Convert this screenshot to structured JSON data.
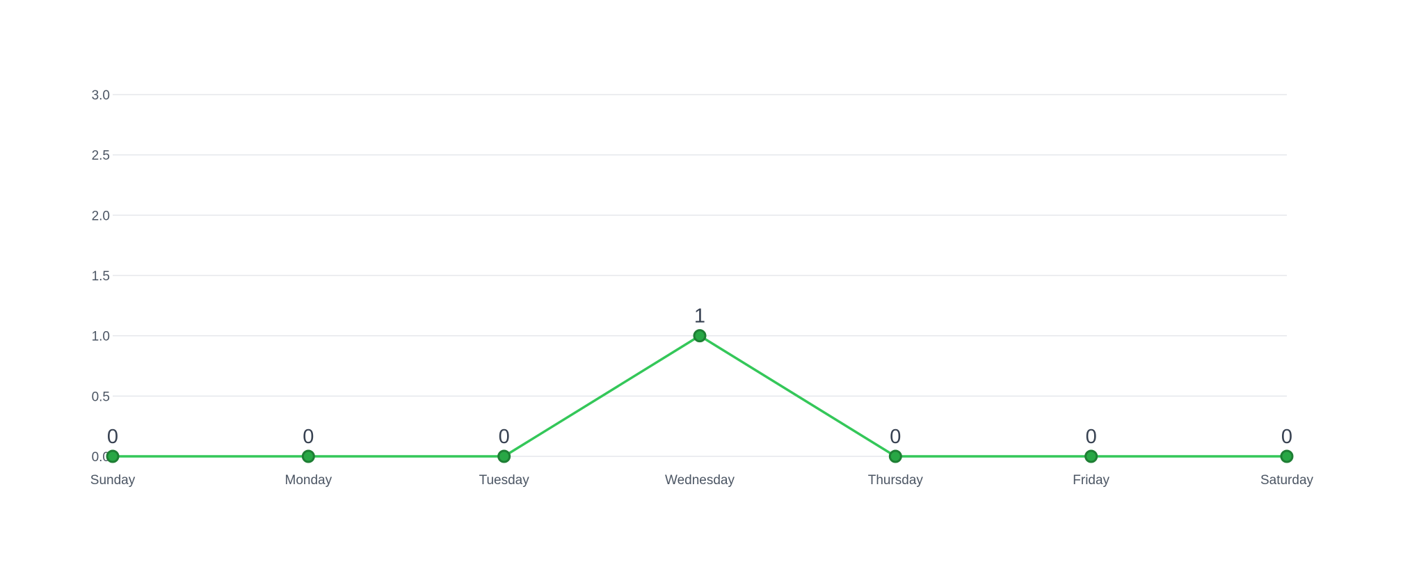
{
  "chart_data": {
    "type": "line",
    "title": "",
    "xlabel": "",
    "ylabel": "",
    "categories": [
      "Sunday",
      "Monday",
      "Tuesday",
      "Wednesday",
      "Thursday",
      "Friday",
      "Saturday"
    ],
    "values": [
      0,
      0,
      0,
      1,
      0,
      0,
      0
    ],
    "data_labels": [
      "0",
      "0",
      "0",
      "1",
      "0",
      "0",
      "0"
    ],
    "ylim": [
      0,
      3
    ],
    "yticks": [
      "0.0",
      "0.5",
      "1.0",
      "1.5",
      "2.0",
      "2.5",
      "3.0"
    ],
    "grid": "horizontal",
    "legend": "none",
    "colors": {
      "line": "#34c759",
      "point_fill": "#28a745",
      "point_stroke": "#1e7e34",
      "grid": "#e5e7eb",
      "tick_text": "#4b5563",
      "label_text": "#374151"
    }
  }
}
